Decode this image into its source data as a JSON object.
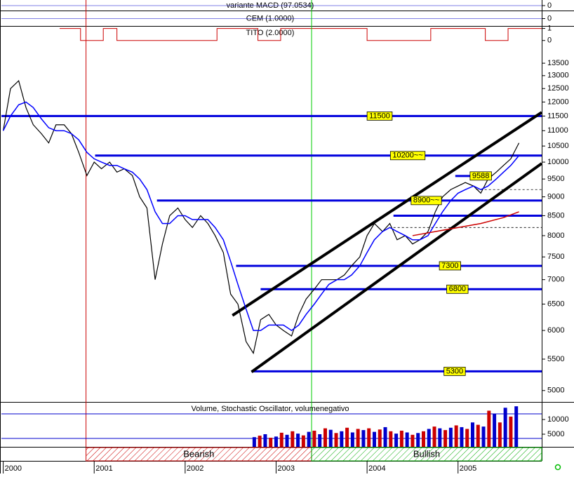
{
  "chart_data": {
    "type": "stock",
    "xlim": [
      1999.98,
      2005.92
    ],
    "xticks": [
      2000,
      2001,
      2002,
      2003,
      2004,
      2005
    ],
    "regimes": [
      {
        "label": "Bearish",
        "x": [
          2000.91,
          2003.39
        ],
        "color": "#cc0000"
      },
      {
        "label": "Bullish",
        "x": [
          2003.39,
          2005.92
        ],
        "color": "#00aa00"
      }
    ],
    "vlines": [
      {
        "x": 2000.91,
        "color": "#cc0000"
      },
      {
        "x": 2003.39,
        "color": "#00cc00"
      }
    ],
    "indicators": [
      {
        "title": "variante MACD (97.0534)",
        "ylim": [
          -1,
          1
        ],
        "yticks": [
          0
        ]
      },
      {
        "title": "CEM (1.0000)",
        "ylim": [
          -1,
          1
        ],
        "yticks": [
          0
        ]
      },
      {
        "title": "TITO (2.0000)",
        "ylim": [
          -0.6,
          1.15
        ],
        "yticks": [
          0,
          1
        ],
        "color": "#cc0000",
        "x": [
          2000.62,
          2000.8,
          2000.85,
          2001.05,
          2001.1,
          2001.2,
          2001.25,
          2002.3,
          2002.35,
          2002.75,
          2002.8,
          2003.0,
          2003.05,
          2003.9,
          2004.0,
          2004.6,
          2004.7,
          2005.25,
          2005.3,
          2005.5,
          2005.55,
          2005.92
        ],
        "values": [
          1,
          1,
          0,
          0,
          1,
          1,
          0,
          0,
          1,
          1,
          0,
          0,
          1,
          1,
          0,
          0,
          1,
          1,
          0,
          0,
          1,
          1
        ]
      }
    ],
    "price": {
      "log": true,
      "ylim": [
        4830,
        14090
      ],
      "yticks": [
        5000,
        5500,
        6000,
        6500,
        7000,
        7500,
        8000,
        8500,
        9000,
        9500,
        10000,
        10500,
        11000,
        11500,
        12000,
        12500,
        13000,
        13500
      ],
      "x": [
        2000.0,
        2000.08,
        2000.17,
        2000.25,
        2000.33,
        2000.42,
        2000.5,
        2000.58,
        2000.67,
        2000.75,
        2000.83,
        2000.92,
        2001.0,
        2001.08,
        2001.17,
        2001.25,
        2001.33,
        2001.42,
        2001.5,
        2001.58,
        2001.67,
        2001.75,
        2001.83,
        2001.92,
        2002.0,
        2002.08,
        2002.17,
        2002.25,
        2002.33,
        2002.42,
        2002.5,
        2002.58,
        2002.67,
        2002.75,
        2002.83,
        2002.92,
        2003.0,
        2003.08,
        2003.17,
        2003.25,
        2003.33,
        2003.42,
        2003.5,
        2003.58,
        2003.67,
        2003.75,
        2003.83,
        2003.92,
        2004.0,
        2004.08,
        2004.17,
        2004.25,
        2004.33,
        2004.42,
        2004.5,
        2004.58,
        2004.67,
        2004.75,
        2004.83,
        2004.92,
        2005.0,
        2005.08,
        2005.17,
        2005.25,
        2005.33,
        2005.42,
        2005.5,
        2005.58,
        2005.67
      ],
      "series": [
        {
          "color": "#000000",
          "values": [
            11000,
            12500,
            12800,
            11800,
            11200,
            10900,
            10600,
            11200,
            11200,
            10900,
            10300,
            9600,
            10000,
            9800,
            10000,
            9700,
            9800,
            9600,
            9000,
            8700,
            7000,
            7800,
            8500,
            8700,
            8400,
            8200,
            8500,
            8300,
            8000,
            7600,
            6700,
            6500,
            5800,
            5600,
            6200,
            6300,
            6100,
            6000,
            5900,
            6300,
            6600,
            6800,
            7000,
            7000,
            7000,
            7100,
            7300,
            7500,
            8000,
            8300,
            8100,
            8300,
            7900,
            8000,
            7800,
            7900,
            8100,
            8600,
            9000,
            9200,
            9300,
            9400,
            9300,
            9100,
            9500,
            9700,
            9900,
            10100,
            10600
          ]
        },
        {
          "color": "#0000ff",
          "values": [
            11000,
            11500,
            11900,
            12000,
            11800,
            11400,
            11100,
            11000,
            11000,
            10900,
            10700,
            10300,
            10100,
            10000,
            9900,
            9900,
            9800,
            9700,
            9500,
            9200,
            8600,
            8300,
            8300,
            8500,
            8500,
            8400,
            8400,
            8400,
            8200,
            7900,
            7400,
            6900,
            6400,
            6000,
            6000,
            6100,
            6100,
            6100,
            6000,
            6100,
            6300,
            6500,
            6700,
            6900,
            7000,
            7000,
            7100,
            7300,
            7600,
            7900,
            8100,
            8200,
            8100,
            8000,
            7900,
            7900,
            8000,
            8300,
            8600,
            8900,
            9100,
            9200,
            9300,
            9200,
            9300,
            9500,
            9700,
            9900,
            10200
          ]
        },
        {
          "color": "#cc0000",
          "x": [
            2004.5,
            2004.75,
            2005.0,
            2005.25,
            2005.5,
            2005.67
          ],
          "values": [
            8000,
            8100,
            8200,
            8300,
            8450,
            8600
          ]
        }
      ],
      "levels": [
        {
          "value": 11500,
          "x": [
            1999.98,
            2005.92
          ]
        },
        {
          "value": 10200,
          "label": "10200~~",
          "x": [
            2001.01,
            2005.92
          ]
        },
        {
          "value": 9588,
          "x": [
            2004.97,
            2005.37
          ]
        },
        {
          "value": 8900,
          "label": "8900~~",
          "x": [
            2001.69,
            2005.92
          ]
        },
        {
          "value": 8500,
          "x": [
            2004.29,
            2005.92
          ],
          "unlabeled": true
        },
        {
          "value": 7300,
          "x": [
            2002.56,
            2005.92
          ]
        },
        {
          "value": 6800,
          "x": [
            2002.83,
            2005.92
          ]
        },
        {
          "value": 5300,
          "x": [
            2002.73,
            2005.92
          ]
        },
        {
          "value": 9200,
          "x": [
            2005.2,
            2005.92
          ],
          "dashed": true
        },
        {
          "value": 8200,
          "x": [
            2004.29,
            2005.92
          ],
          "dashed": true
        }
      ],
      "channel": [
        {
          "x": [
            2002.52,
            2005.92
          ],
          "values": [
            6280,
            11630
          ]
        },
        {
          "x": [
            2002.73,
            2005.92
          ],
          "values": [
            5290,
            9960
          ]
        }
      ]
    },
    "volume": {
      "title": "Volume, Stochastic Oscillator, volumenegativo",
      "ylim": [
        700,
        15500
      ],
      "yticks": [
        5000,
        10000
      ],
      "colors": [
        "#0000cc",
        "#cc0000"
      ],
      "x": [
        2002.76,
        2002.82,
        2002.88,
        2002.94,
        2003.0,
        2003.06,
        2003.12,
        2003.18,
        2003.24,
        2003.3,
        2003.36,
        2003.42,
        2003.48,
        2003.54,
        2003.6,
        2003.66,
        2003.72,
        2003.78,
        2003.84,
        2003.9,
        2003.96,
        2004.02,
        2004.08,
        2004.14,
        2004.2,
        2004.26,
        2004.32,
        2004.38,
        2004.44,
        2004.5,
        2004.56,
        2004.62,
        2004.68,
        2004.74,
        2004.8,
        2004.86,
        2004.92,
        2004.98,
        2005.04,
        2005.1,
        2005.16,
        2005.22,
        2005.28,
        2005.34,
        2005.4,
        2005.46,
        2005.52,
        2005.58,
        2005.64
      ],
      "values": [
        4000,
        4500,
        5000,
        3800,
        4200,
        5500,
        4800,
        6000,
        5200,
        4600,
        5800,
        6200,
        5000,
        7000,
        6500,
        5400,
        6000,
        7200,
        5600,
        6800,
        6400,
        7000,
        5800,
        6600,
        7400,
        6000,
        5200,
        6200,
        5600,
        4800,
        5400,
        6000,
        6800,
        7600,
        7000,
        6400,
        7200,
        8000,
        7400,
        6800,
        9000,
        8200,
        7600,
        13000,
        12000,
        9000,
        14000,
        11000,
        14500
      ]
    }
  }
}
